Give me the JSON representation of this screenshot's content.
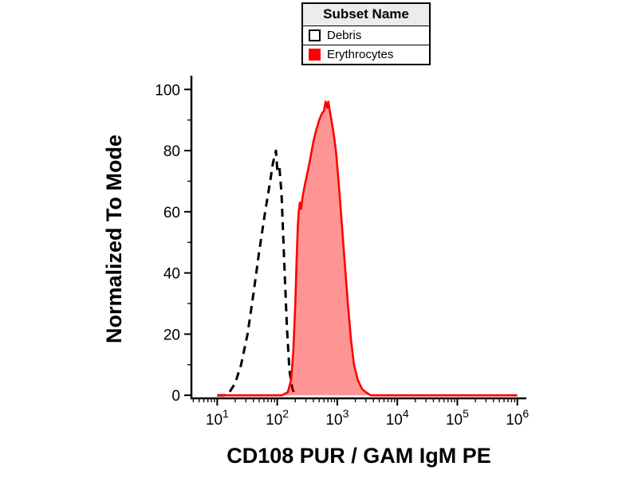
{
  "legend": {
    "header": "Subset Name",
    "entries": [
      {
        "label": "Debris",
        "swatch_fill": "#ffffff",
        "swatch_border": "#000000",
        "line_style": "dashed"
      },
      {
        "label": "Erythrocytes",
        "swatch_fill": "#ff0000",
        "swatch_border": "#ff0000",
        "line_style": "solid"
      }
    ]
  },
  "chart_data": {
    "type": "line",
    "subtype": "flow-cytometry-histogram",
    "title": "",
    "xlabel": "CD108 PUR / GAM IgM PE",
    "ylabel": "Normalized To Mode",
    "x_scale": "log10",
    "xlim_log10": [
      0.57,
      6.15
    ],
    "ylim": [
      -1,
      104.5
    ],
    "x_axis_ticks_exponents": [
      1,
      2,
      3,
      4,
      5,
      6
    ],
    "y_ticks": [
      0,
      20,
      40,
      60,
      80,
      100
    ],
    "y_minor_ticks": [
      10,
      30,
      50,
      70,
      90
    ],
    "grid": false,
    "legend_position": "top-center",
    "series": [
      {
        "name": "Debris",
        "color": "#000000",
        "line_style": "dashed",
        "fill": "none",
        "points": [
          [
            10,
            0
          ],
          [
            13,
            0
          ],
          [
            16,
            1
          ],
          [
            20,
            4
          ],
          [
            25,
            10
          ],
          [
            32,
            20
          ],
          [
            40,
            33
          ],
          [
            50,
            47
          ],
          [
            63,
            60
          ],
          [
            75,
            69
          ],
          [
            85,
            76
          ],
          [
            95,
            80
          ],
          [
            100,
            74
          ],
          [
            108,
            75
          ],
          [
            118,
            66
          ],
          [
            130,
            45
          ],
          [
            145,
            22
          ],
          [
            160,
            8
          ],
          [
            180,
            2
          ],
          [
            200,
            0
          ]
        ]
      },
      {
        "name": "Erythrocytes",
        "color": "#ff0000",
        "line_style": "solid",
        "fill": "rgba(255,0,0,0.42)",
        "points": [
          [
            10,
            0
          ],
          [
            120,
            0
          ],
          [
            150,
            1
          ],
          [
            170,
            5
          ],
          [
            185,
            14
          ],
          [
            200,
            30
          ],
          [
            210,
            44
          ],
          [
            220,
            55
          ],
          [
            228,
            60
          ],
          [
            238,
            63
          ],
          [
            250,
            61
          ],
          [
            265,
            65
          ],
          [
            290,
            69
          ],
          [
            320,
            73
          ],
          [
            360,
            78
          ],
          [
            400,
            83
          ],
          [
            450,
            87
          ],
          [
            500,
            90
          ],
          [
            550,
            92
          ],
          [
            600,
            93
          ],
          [
            640,
            96
          ],
          [
            680,
            94
          ],
          [
            710,
            96
          ],
          [
            750,
            93
          ],
          [
            800,
            90
          ],
          [
            880,
            85
          ],
          [
            960,
            79
          ],
          [
            1050,
            70
          ],
          [
            1150,
            60
          ],
          [
            1300,
            46
          ],
          [
            1500,
            30
          ],
          [
            1700,
            18
          ],
          [
            1900,
            10
          ],
          [
            2200,
            5
          ],
          [
            2600,
            2
          ],
          [
            3000,
            1
          ],
          [
            3600,
            0
          ],
          [
            1000000,
            0
          ]
        ]
      }
    ]
  }
}
